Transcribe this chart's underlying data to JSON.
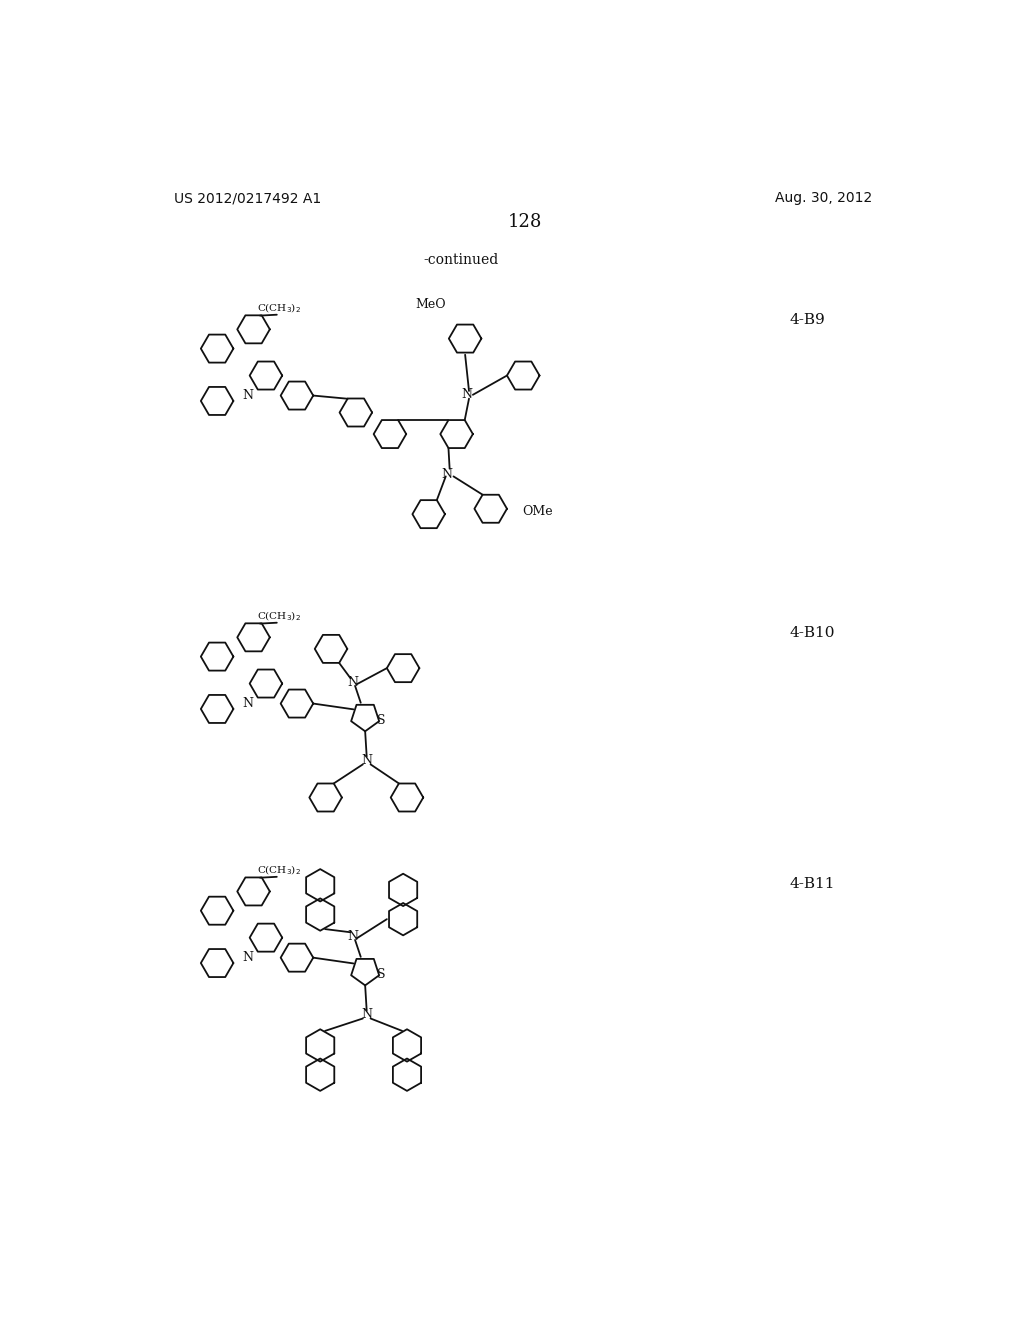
{
  "background_color": "#ffffff",
  "page_number": "128",
  "header_left": "US 2012/0217492 A1",
  "header_right": "Aug. 30, 2012",
  "continued_text": "-continued",
  "label_4B9": "4-B9",
  "label_4B10": "4-B10",
  "label_4B11": "4-B11",
  "line_color": "#1a1a1a",
  "text_color": "#1a1a1a"
}
